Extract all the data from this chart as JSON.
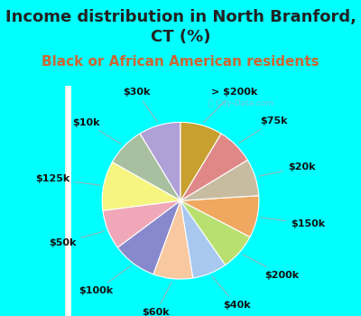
{
  "title": "Income distribution in North Branford,\nCT (%)",
  "subtitle": "Black or African American residents",
  "labels": [
    "$30k",
    "$10k",
    "$125k",
    "$50k",
    "$100k",
    "$60k",
    "$40k",
    "$200k",
    "$150k",
    "$20k",
    "$75k",
    "> $200k"
  ],
  "values": [
    8.5,
    8.0,
    10.0,
    8.0,
    9.0,
    8.0,
    7.0,
    7.5,
    8.5,
    7.5,
    7.5,
    8.5
  ],
  "colors": [
    "#b0a0d8",
    "#a8bfa0",
    "#f5f580",
    "#f0a8b8",
    "#8888cc",
    "#f8c8a0",
    "#a8c8f0",
    "#b8e070",
    "#f0a860",
    "#c8bca0",
    "#e08888",
    "#c8a030"
  ],
  "title_color": "#222222",
  "subtitle_color": "#cc6633",
  "background_color": "#00ffff",
  "plot_bg_left": "#c8e8d8",
  "plot_bg_right": "#f0f8f4",
  "label_color": "#111111",
  "line_color": "#aaaaaa",
  "title_fontsize": 13,
  "subtitle_fontsize": 11,
  "label_fontsize": 8,
  "watermark": "City-Data.com"
}
